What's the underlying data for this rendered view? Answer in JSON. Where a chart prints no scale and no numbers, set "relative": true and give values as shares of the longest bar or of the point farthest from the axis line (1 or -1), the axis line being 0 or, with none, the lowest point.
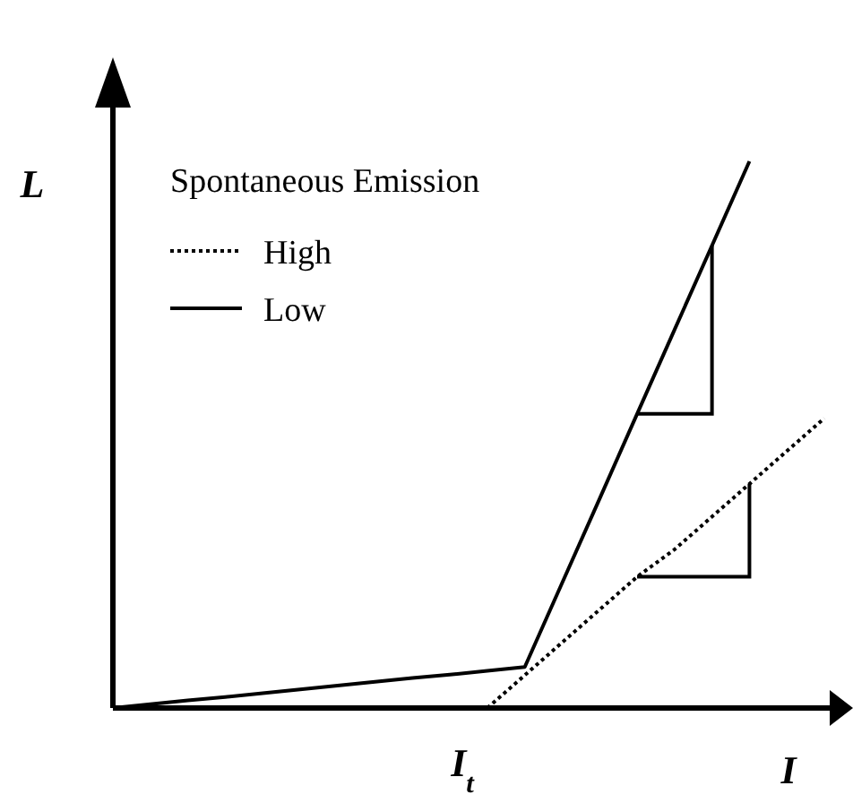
{
  "chart_data": {
    "type": "line",
    "relative": true,
    "xlabel": "I",
    "ylabel": "L",
    "legend_title": "Spontaneous Emission",
    "legend": "top left",
    "categories": [
      null,
      null,
      null,
      null,
      null,
      null,
      null,
      null,
      null,
      null,
      null,
      null,
      null,
      null,
      null,
      null,
      null,
      null,
      null,
      null
    ],
    "annotations": [
      "I$_{t}$"
    ],
    "series": [
      {
        "name": "High",
        "color": "#000000",
        "line_style": "dotted",
        "values": [
          null,
          null,
          null,
          null,
          null,
          null,
          null,
          null,
          null,
          null,
          0,
          0.06,
          0.12,
          0.18,
          0.24,
          0.29,
          0.35,
          0.41,
          0.47,
          0.53
        ]
      },
      {
        "name": "Low",
        "color": "#000000",
        "line_style": "solid",
        "values": [
          0,
          0.007,
          0.014,
          0.02,
          0.027,
          0.034,
          0.041,
          0.048,
          0.055,
          0.061,
          0.068,
          0.075,
          0.229,
          0.383,
          0.538,
          0.692,
          0.846,
          1,
          null,
          null
        ]
      }
    ]
  }
}
